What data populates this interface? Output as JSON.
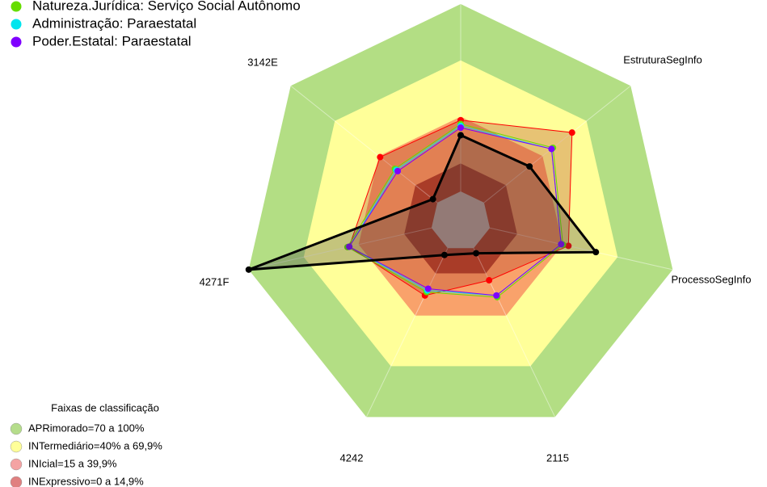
{
  "chart_data": {
    "type": "radar",
    "categories": [
      null,
      "EstruturaSegInfo",
      "ProcessoSegInfo",
      "2115",
      "4242",
      "4271F",
      "3142E"
    ],
    "rlim": [
      0,
      100
    ],
    "series": [
      {
        "name": null,
        "color": "#ff0000",
        "values": [
          38,
          60,
          43,
          19,
          28,
          45,
          39
        ]
      },
      {
        "name": "Natureza.Jurídica: Serviço Social Autônomo",
        "color": "#66dd00",
        "values": [
          36,
          47,
          40,
          29,
          26,
          46,
          29
        ]
      },
      {
        "name": "Administração: Paraestatal",
        "color": "#00e5ee",
        "values": [
          35,
          46,
          39,
          28,
          25,
          45,
          28
        ]
      },
      {
        "name": "Poder.Estatal: Paraestatal",
        "color": "#7f00ff",
        "values": [
          34,
          46,
          39,
          28,
          24,
          45,
          27
        ]
      },
      {
        "name": null,
        "color": "#000000",
        "values": [
          30,
          31,
          58,
          3,
          4,
          100,
          3
        ]
      }
    ],
    "bands_title": "Faixas de classificação",
    "bands": [
      {
        "label": "APRimorado=70 a 100%",
        "upper": 100,
        "color": "#b3de84",
        "legend_color": "#b5dd8b"
      },
      {
        "label": "INTermediário=40% a 69,9%",
        "upper": 69.9,
        "color": "#ffff99",
        "legend_color": "#ffff99"
      },
      {
        "label": "INIcial=15 a 39,9%",
        "upper": 39.9,
        "color": "#f9a26b",
        "legend_color": "#f4a3a3"
      },
      {
        "label": "INExpressivo=0 a 14,9%",
        "upper": 14.9,
        "color": "#a94430",
        "legend_color": "#e08080"
      }
    ]
  }
}
